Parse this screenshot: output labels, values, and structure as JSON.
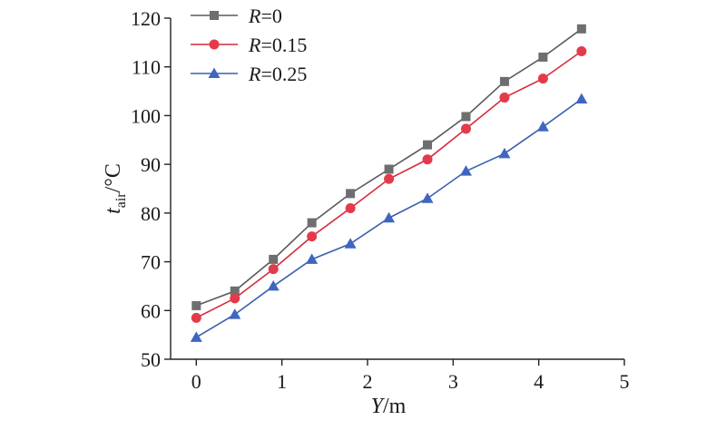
{
  "chart_data": {
    "type": "line",
    "title": "",
    "xlabel": "Y/m",
    "xlabel_italic": "Y",
    "xlabel_rest": "/m",
    "ylabel": "t_air/°C",
    "ylabel_italic": "t",
    "ylabel_sub": "air",
    "ylabel_rest": "/°C",
    "xlim": [
      -0.3,
      5
    ],
    "ylim": [
      50,
      120
    ],
    "x_ticks": [
      "0",
      "1",
      "2",
      "3",
      "4",
      "5"
    ],
    "y_ticks": [
      "50",
      "60",
      "70",
      "80",
      "90",
      "100",
      "110",
      "120"
    ],
    "grid": false,
    "legend_position": "top-left",
    "x": [
      0,
      0.45,
      0.9,
      1.35,
      1.8,
      2.25,
      2.7,
      3.15,
      3.6,
      4.05,
      4.5
    ],
    "series": [
      {
        "name": "R=0",
        "name_italic": "R",
        "name_rest": "=0",
        "marker": "square",
        "line_color": "#5a5a5a",
        "marker_color": "#6e6e6e",
        "values": [
          61,
          64,
          70.5,
          78,
          84,
          89,
          94,
          99.8,
          107,
          112,
          117.8
        ]
      },
      {
        "name": "R=0.15",
        "name_italic": "R",
        "name_rest": "=0.15",
        "marker": "circle",
        "line_color": "#d62a3c",
        "marker_color": "#e33b4c",
        "values": [
          58.5,
          62.5,
          68.5,
          75.2,
          81,
          87,
          91,
          97.3,
          103.7,
          107.6,
          113.2
        ]
      },
      {
        "name": "R=0.25",
        "name_italic": "R",
        "name_rest": "=0.25",
        "marker": "triangle",
        "line_color": "#3a5fb0",
        "marker_color": "#3f66bf",
        "values": [
          54.5,
          59.2,
          65,
          70.5,
          73.7,
          79,
          83,
          88.6,
          92.2,
          97.7,
          103.4
        ]
      }
    ]
  }
}
